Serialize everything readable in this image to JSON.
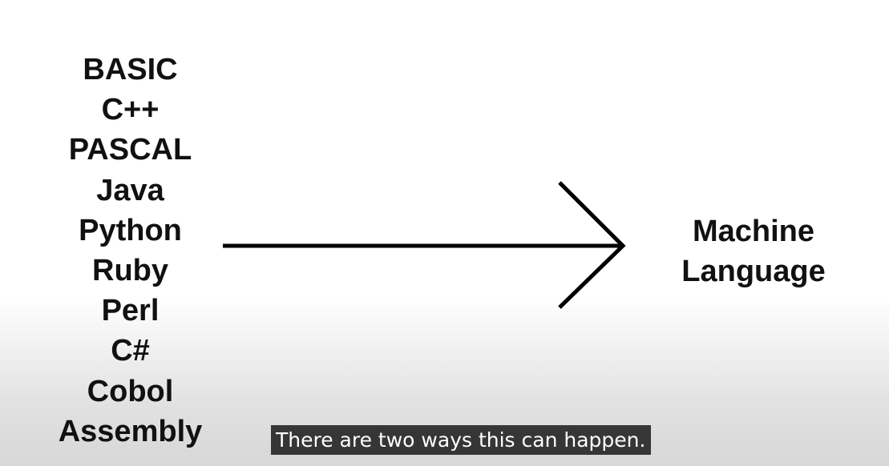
{
  "diagram": {
    "source_languages": [
      "BASIC",
      "C++",
      "PASCAL",
      "Java",
      "Python",
      "Ruby",
      "Perl",
      "C#",
      "Cobol",
      "Assembly"
    ],
    "target": {
      "line1": "Machine",
      "line2": "Language"
    },
    "arrow_icon": "right-arrow-icon"
  },
  "subtitle": {
    "text": "There are two ways this can happen."
  },
  "colors": {
    "text": "#111111",
    "arrow": "#000000",
    "caption_background": "#080808",
    "caption_text": "#ffffff"
  }
}
